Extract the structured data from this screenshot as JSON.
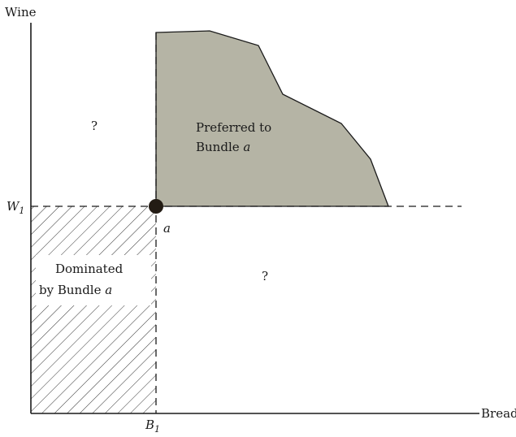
{
  "colors": {
    "line": "#1a1a1a",
    "preferred_fill": "#b5b4a5",
    "hatch": "#333333",
    "point": "#231c14"
  },
  "axes": {
    "y_label": "Wine",
    "x_label": "Bread"
  },
  "ticks": {
    "w1_letter": "W",
    "w1_sub": "1",
    "b1_letter": "B",
    "b1_sub": "1"
  },
  "point": {
    "label": "a"
  },
  "regions": {
    "preferred_line1": "Preferred to",
    "preferred_line2": "Bundle",
    "preferred_italic": "a",
    "dominated_line1": "Dominated",
    "dominated_line2": "by Bundle",
    "dominated_italic": "a",
    "unknown_top_left": "?",
    "unknown_bottom_right": "?"
  }
}
